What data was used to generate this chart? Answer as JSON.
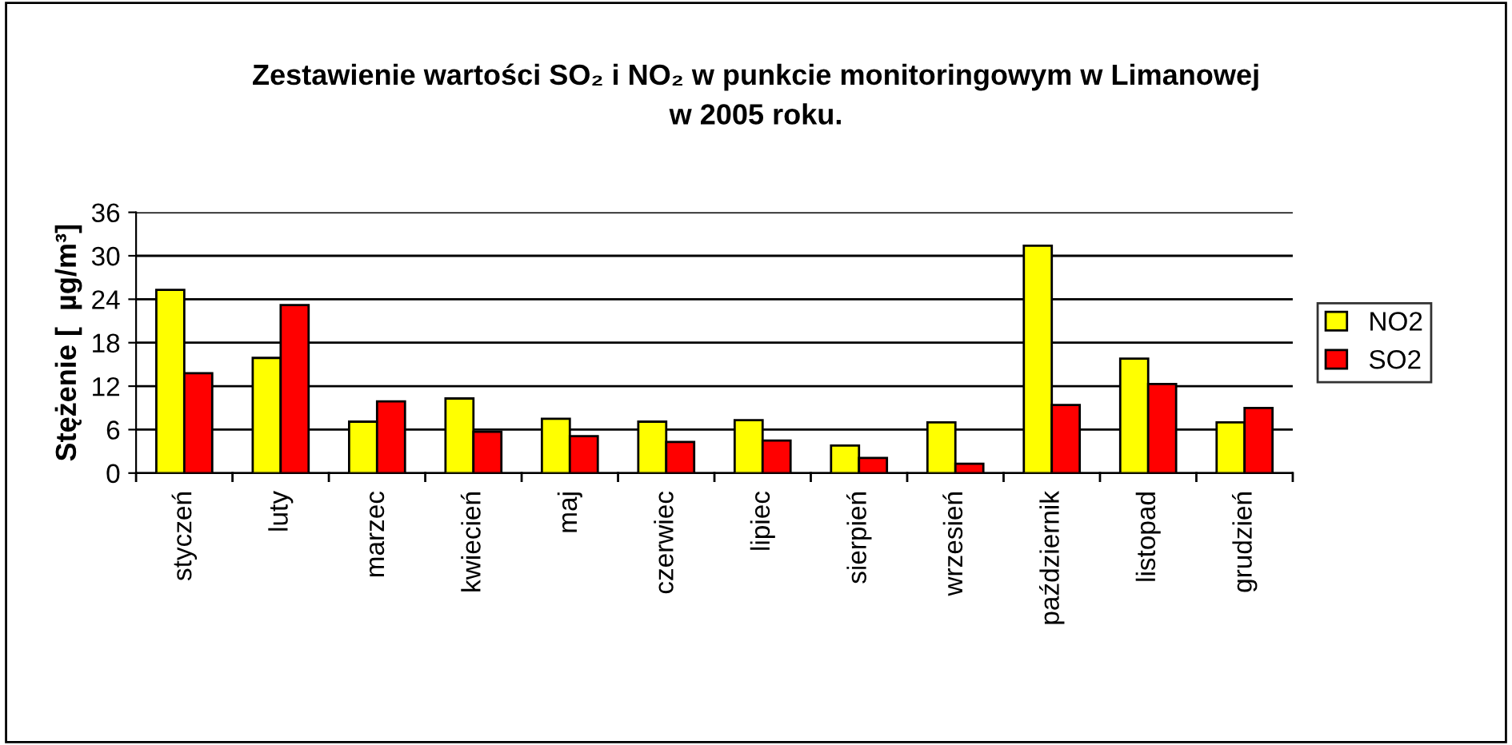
{
  "chart_data": {
    "type": "bar",
    "title": "Zestawienie wartości SO₂ i NO₂ w punkcie monitoringowym w Limanowej\nw 2005 roku.",
    "ylabel": "Stężenie [  µg/m³]",
    "categories": [
      "styczeń",
      "luty",
      "marzec",
      "kwiecień",
      "maj",
      "czerwiec",
      "lipiec",
      "sierpień",
      "wrzesień",
      "październik",
      "listopad",
      "grudzień"
    ],
    "series": [
      {
        "name": "NO2",
        "color": "#ffff00",
        "values": [
          25.3,
          15.9,
          7.1,
          10.3,
          7.5,
          7.1,
          7.3,
          3.8,
          7.0,
          31.4,
          15.8,
          7.0
        ]
      },
      {
        "name": "SO2",
        "color": "#ff0000",
        "values": [
          13.8,
          23.2,
          9.9,
          5.7,
          5.1,
          4.3,
          4.5,
          2.1,
          1.3,
          9.4,
          12.3,
          9.0
        ]
      }
    ],
    "ylim": [
      0,
      36
    ],
    "yticks": [
      0,
      6,
      12,
      18,
      24,
      30,
      36
    ],
    "grid": "y",
    "legend": "right"
  }
}
